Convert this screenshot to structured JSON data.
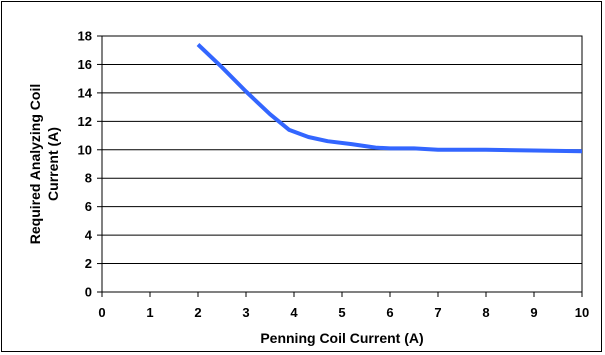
{
  "chart_data": {
    "type": "line",
    "title": "",
    "xlabel": "Penning Coil Current (A)",
    "ylabel_lines": [
      "Required Analyzing Coil",
      "Current (A)"
    ],
    "xlim": [
      0,
      10
    ],
    "ylim": [
      0,
      18
    ],
    "x_ticks": [
      0,
      1,
      2,
      3,
      4,
      5,
      6,
      7,
      8,
      9,
      10
    ],
    "y_ticks": [
      0,
      2,
      4,
      6,
      8,
      10,
      12,
      14,
      16,
      18
    ],
    "grid": "horizontal",
    "series": [
      {
        "color": "#3366ff",
        "x": [
          2.0,
          2.5,
          3.0,
          3.5,
          3.9,
          4.3,
          4.7,
          5.2,
          5.7,
          6.0,
          6.5,
          7.0,
          7.5,
          8.0,
          9.0,
          10.0
        ],
        "y": [
          17.4,
          15.8,
          14.1,
          12.5,
          11.4,
          10.9,
          10.6,
          10.4,
          10.15,
          10.1,
          10.1,
          10.0,
          10.0,
          10.0,
          9.95,
          9.9
        ]
      }
    ]
  }
}
